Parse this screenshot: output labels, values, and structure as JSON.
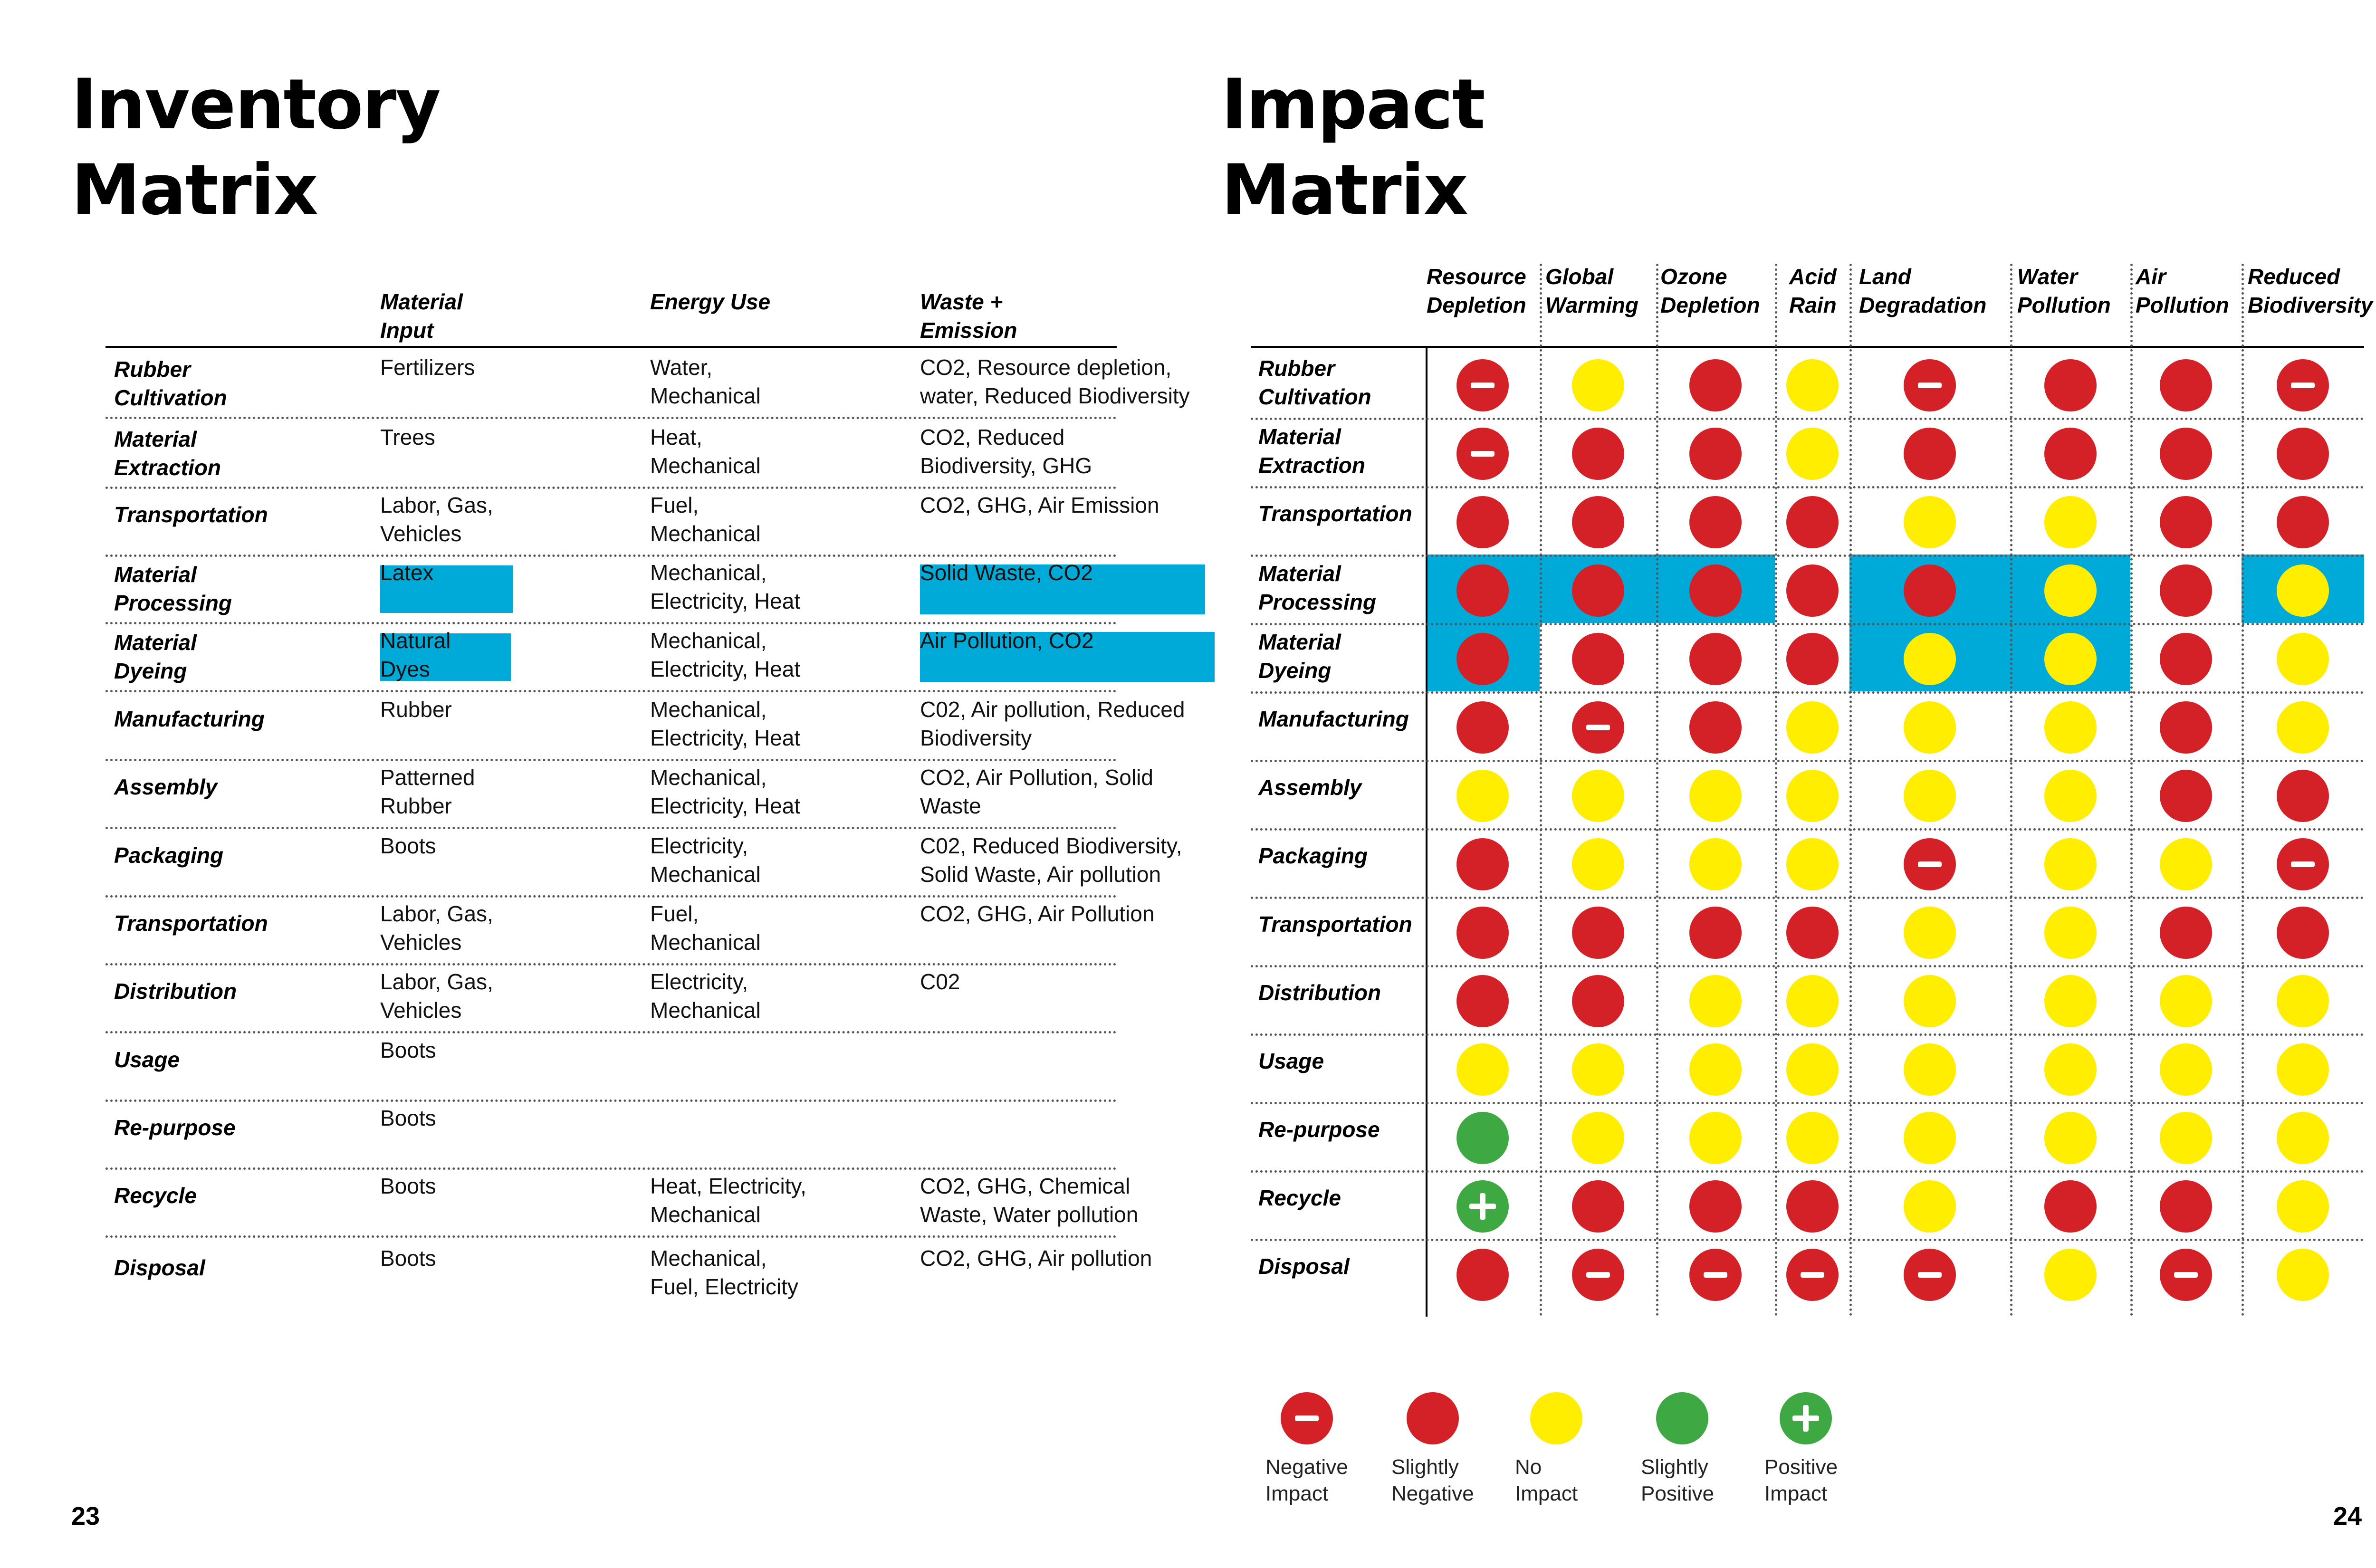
{
  "left_page": {
    "title": "Inventory\nMatrix",
    "page_number": "23",
    "columns": [
      "Material\nInput",
      "Energy Use",
      "Waste +\nEmission"
    ],
    "rows": [
      {
        "stage": "Rubber\nCultivation",
        "input": "Fertilizers",
        "energy": "Water,\nMechanical",
        "waste": "CO2, Resource depletion,\nwater, Reduced Biodiversity"
      },
      {
        "stage": "Material\nExtraction",
        "input": "Trees",
        "energy": "Heat,\nMechanical",
        "waste": "CO2, Reduced\nBiodiversity, GHG"
      },
      {
        "stage": "Transportation",
        "input": "Labor, Gas,\nVehicles",
        "energy": "Fuel,\nMechanical",
        "waste": "CO2, GHG, Air Emission"
      },
      {
        "stage": "Material\nProcessing",
        "input": "Latex",
        "energy": "Mechanical,\nElectricity, Heat",
        "waste": "Solid Waste, CO2"
      },
      {
        "stage": "Material\nDyeing",
        "input": "Natural\nDyes",
        "energy": "Mechanical,\nElectricity, Heat",
        "waste": "Air Pollution, CO2"
      },
      {
        "stage": "Manufacturing",
        "input": "Rubber",
        "energy": "Mechanical,\nElectricity, Heat",
        "waste": "C02, Air pollution, Reduced\nBiodiversity"
      },
      {
        "stage": "Assembly",
        "input": "Patterned\nRubber",
        "energy": "Mechanical,\nElectricity, Heat",
        "waste": "CO2, Air Pollution, Solid\nWaste"
      },
      {
        "stage": "Packaging",
        "input": "Boots",
        "energy": "Electricity,\nMechanical",
        "waste": "C02, Reduced Biodiversity,\nSolid Waste, Air pollution"
      },
      {
        "stage": "Transportation",
        "input": "Labor, Gas,\nVehicles",
        "energy": "Fuel,\nMechanical",
        "waste": "CO2, GHG, Air Pollution"
      },
      {
        "stage": "Distribution",
        "input": "Labor, Gas,\nVehicles",
        "energy": "Electricity,\nMechanical",
        "waste": "C02"
      },
      {
        "stage": "Usage",
        "input": "Boots",
        "energy": "",
        "waste": ""
      },
      {
        "stage": "Re-purpose",
        "input": "Boots",
        "energy": "",
        "waste": ""
      },
      {
        "stage": "Recycle",
        "input": "Boots",
        "energy": "Heat, Electricity,\nMechanical",
        "waste": "CO2, GHG, Chemical\nWaste, Water pollution"
      },
      {
        "stage": "Disposal",
        "input": "Boots",
        "energy": "Mechanical,\nFuel, Electricity",
        "waste": "CO2, GHG, Air pollution"
      }
    ],
    "highlight_color": "#00aad8"
  },
  "right_page": {
    "title": "Impact\nMatrix",
    "page_number": "24",
    "columns": [
      "Resource\nDepletion",
      "Global\nWarming",
      "Ozone\nDepletion",
      "Acid\nRain",
      "Land\nDegradation",
      "Water\nPollution",
      "Air\nPollution",
      "Reduced\nBiodiversity"
    ],
    "rows": [
      {
        "stage": "Rubber\nCultivation",
        "impacts": [
          "neg",
          "none",
          "sneg",
          "none",
          "neg",
          "sneg",
          "sneg",
          "neg"
        ]
      },
      {
        "stage": "Material\nExtraction",
        "impacts": [
          "neg",
          "sneg",
          "sneg",
          "none",
          "sneg",
          "sneg",
          "sneg",
          "sneg"
        ]
      },
      {
        "stage": "Transportation",
        "impacts": [
          "sneg",
          "sneg",
          "sneg",
          "sneg",
          "none",
          "none",
          "sneg",
          "sneg"
        ]
      },
      {
        "stage": "Material\nProcessing",
        "impacts": [
          "sneg",
          "sneg",
          "sneg",
          "sneg",
          "sneg",
          "none",
          "sneg",
          "none"
        ]
      },
      {
        "stage": "Material\nDyeing",
        "impacts": [
          "sneg",
          "sneg",
          "sneg",
          "sneg",
          "none",
          "none",
          "sneg",
          "none"
        ]
      },
      {
        "stage": "Manufacturing",
        "impacts": [
          "sneg",
          "neg",
          "sneg",
          "none",
          "none",
          "none",
          "sneg",
          "none"
        ]
      },
      {
        "stage": "Assembly",
        "impacts": [
          "none",
          "none",
          "none",
          "none",
          "none",
          "none",
          "sneg",
          "sneg"
        ]
      },
      {
        "stage": "Packaging",
        "impacts": [
          "sneg",
          "none",
          "none",
          "none",
          "neg",
          "none",
          "none",
          "neg"
        ]
      },
      {
        "stage": "Transportation",
        "impacts": [
          "sneg",
          "sneg",
          "sneg",
          "sneg",
          "none",
          "none",
          "sneg",
          "sneg"
        ]
      },
      {
        "stage": "Distribution",
        "impacts": [
          "sneg",
          "sneg",
          "none",
          "none",
          "none",
          "none",
          "none",
          "none"
        ]
      },
      {
        "stage": "Usage",
        "impacts": [
          "none",
          "none",
          "none",
          "none",
          "none",
          "none",
          "none",
          "none"
        ]
      },
      {
        "stage": "Re-purpose",
        "impacts": [
          "spos",
          "none",
          "none",
          "none",
          "none",
          "none",
          "none",
          "none"
        ]
      },
      {
        "stage": "Recycle",
        "impacts": [
          "pos",
          "sneg",
          "sneg",
          "sneg",
          "none",
          "sneg",
          "sneg",
          "none"
        ]
      },
      {
        "stage": "Disposal",
        "impacts": [
          "sneg",
          "neg",
          "neg",
          "neg",
          "neg",
          "none",
          "neg",
          "none"
        ]
      }
    ],
    "legend": [
      {
        "key": "neg",
        "label": "Negative\nImpact"
      },
      {
        "key": "sneg",
        "label": "Slightly\nNegative"
      },
      {
        "key": "none",
        "label": "No\nImpact"
      },
      {
        "key": "spos",
        "label": "Slightly\nPositive"
      },
      {
        "key": "pos",
        "label": "Positive\nImpact"
      }
    ],
    "colors": {
      "negative": "#d42128",
      "no_impact": "#ffee00",
      "positive": "#3ea843",
      "highlight": "#00aad8"
    }
  }
}
